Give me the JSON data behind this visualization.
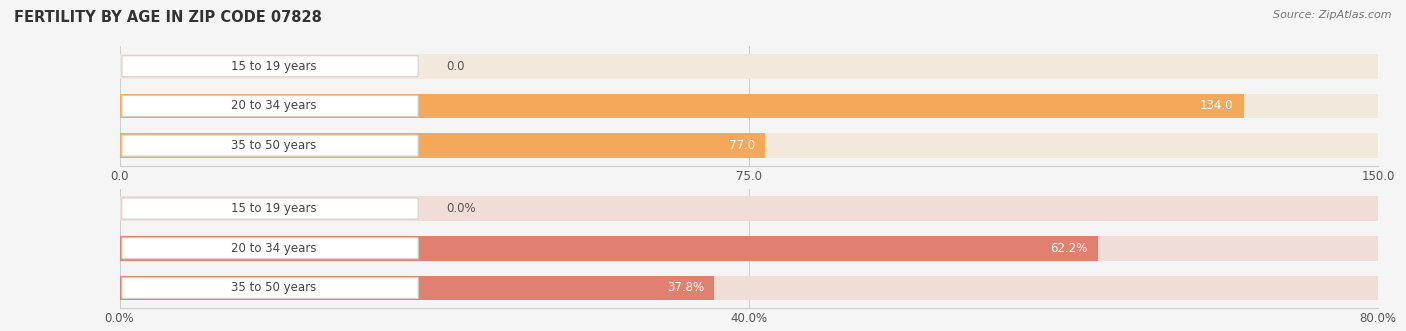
{
  "title": "FERTILITY BY AGE IN ZIP CODE 07828",
  "source": "Source: ZipAtlas.com",
  "top_chart": {
    "categories": [
      "15 to 19 years",
      "20 to 34 years",
      "35 to 50 years"
    ],
    "values": [
      0.0,
      134.0,
      77.0
    ],
    "xlim": [
      0,
      150.0
    ],
    "xticks": [
      0.0,
      75.0,
      150.0
    ],
    "xtick_labels": [
      "0.0",
      "75.0",
      "150.0"
    ],
    "bar_color": "#F5A85A",
    "bar_bg_color": "#F2E8DC",
    "label_pill_bg": "#FFFFFF",
    "label_pill_border": "#E0D0C0"
  },
  "bottom_chart": {
    "categories": [
      "15 to 19 years",
      "20 to 34 years",
      "35 to 50 years"
    ],
    "values": [
      0.0,
      62.2,
      37.8
    ],
    "xlim": [
      0,
      80.0
    ],
    "xticks": [
      0.0,
      40.0,
      80.0
    ],
    "xtick_labels": [
      "0.0%",
      "40.0%",
      "80.0%"
    ],
    "bar_color": "#E08070",
    "bar_bg_color": "#F0DDD8",
    "label_pill_bg": "#FFFFFF",
    "label_pill_border": "#E0C8C0"
  },
  "bg_color": "#F5F5F5",
  "bar_height": 0.62,
  "label_fontsize": 8.5,
  "tick_fontsize": 8.5,
  "category_fontsize": 8.5,
  "title_fontsize": 10.5,
  "source_fontsize": 8
}
